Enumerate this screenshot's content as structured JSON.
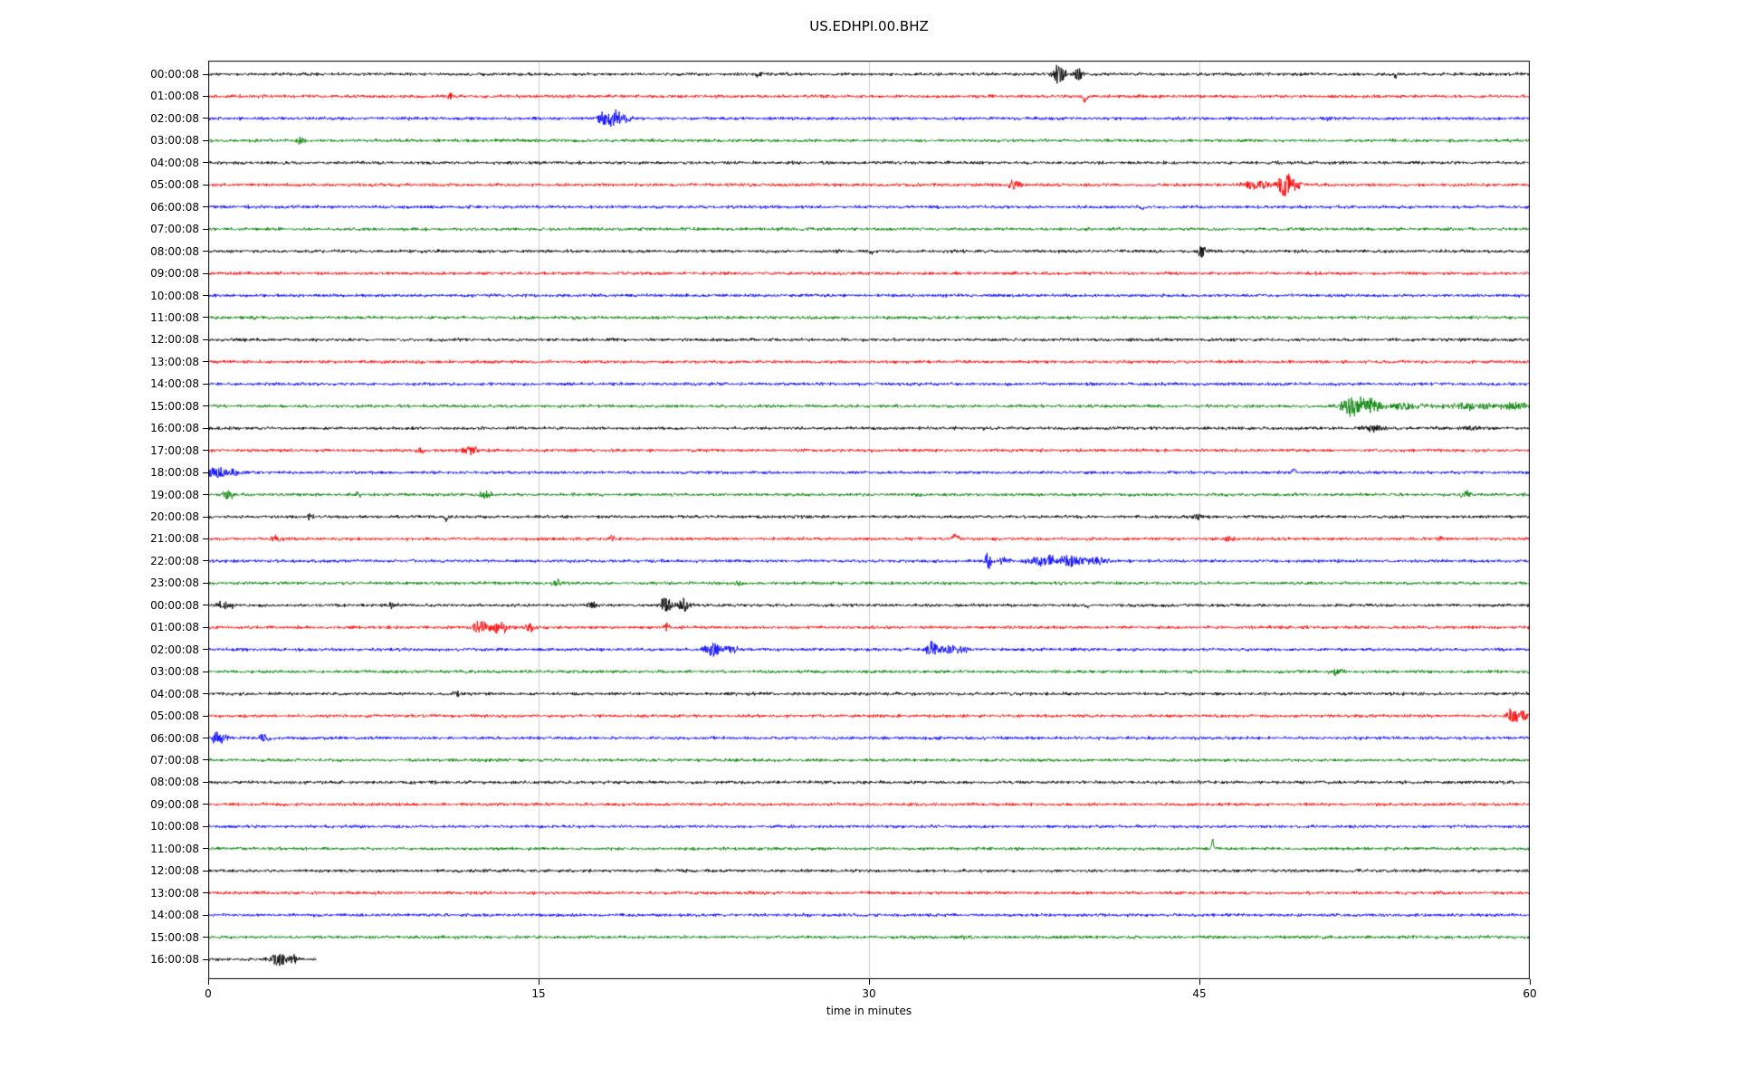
{
  "title": "US.EDHPI.00.BHZ",
  "chart_data": {
    "type": "line",
    "subtype": "helicorder-dayplot",
    "title": "US.EDHPI.00.BHZ",
    "xlabel": "time in minutes",
    "xlim": [
      0,
      60
    ],
    "x_ticks": [
      0,
      15,
      30,
      45,
      60
    ],
    "grid_x": [
      15,
      30,
      45
    ],
    "grid_color": "#cccccc",
    "frame_color": "#000000",
    "background": "#ffffff",
    "palette": {
      "black": "#000000",
      "red": "#ff0000",
      "blue": "#0000ff",
      "green": "#008000"
    },
    "minutes_per_row": 60,
    "event_format": [
      "x_minutes",
      "half_amplitude_px",
      "half_width_minutes",
      "sign"
    ],
    "rows": [
      {
        "label": "00:00:08",
        "color": "black",
        "events": [
          [
            25.0,
            3,
            0.2,
            0
          ],
          [
            26.3,
            2.5,
            0.15,
            0
          ],
          [
            38.6,
            10,
            0.35,
            0
          ],
          [
            39.5,
            9,
            0.2,
            0
          ],
          [
            53.9,
            4,
            0.08,
            -1
          ]
        ]
      },
      {
        "label": "01:00:08",
        "color": "red",
        "events": [
          [
            11.0,
            3,
            0.2,
            0
          ],
          [
            39.8,
            7,
            0.1,
            -1
          ]
        ]
      },
      {
        "label": "02:00:08",
        "color": "blue",
        "events": [
          [
            18.0,
            8,
            0.3,
            0
          ],
          [
            18.5,
            9,
            0.25,
            0
          ],
          [
            19.0,
            4,
            0.3,
            0
          ],
          [
            50.9,
            3,
            0.15,
            0
          ]
        ]
      },
      {
        "label": "03:00:08",
        "color": "green",
        "events": [
          [
            4.2,
            4,
            0.2,
            0
          ]
        ]
      },
      {
        "label": "04:00:08",
        "color": "black",
        "events": []
      },
      {
        "label": "05:00:08",
        "color": "red",
        "events": [
          [
            36.6,
            5,
            0.3,
            0
          ],
          [
            47.6,
            4,
            0.8,
            0
          ],
          [
            48.9,
            12,
            0.35,
            0
          ],
          [
            49.4,
            5,
            0.3,
            0
          ]
        ]
      },
      {
        "label": "06:00:08",
        "color": "blue",
        "events": [
          [
            42.4,
            4,
            0.1,
            -1
          ]
        ]
      },
      {
        "label": "07:00:08",
        "color": "green",
        "events": []
      },
      {
        "label": "08:00:08",
        "color": "black",
        "events": [
          [
            30.1,
            3,
            0.06,
            -1
          ],
          [
            45.1,
            8,
            0.2,
            0
          ]
        ]
      },
      {
        "label": "09:00:08",
        "color": "red",
        "events": []
      },
      {
        "label": "10:00:08",
        "color": "blue",
        "events": []
      },
      {
        "label": "11:00:08",
        "color": "green",
        "events": []
      },
      {
        "label": "12:00:08",
        "color": "black",
        "events": []
      },
      {
        "label": "13:00:08",
        "color": "red",
        "events": []
      },
      {
        "label": "14:00:08",
        "color": "blue",
        "events": []
      },
      {
        "label": "15:00:08",
        "color": "green",
        "events": [
          [
            51.9,
            11,
            0.5,
            0
          ],
          [
            52.8,
            7,
            0.6,
            0
          ],
          [
            54.2,
            4,
            1.0,
            0
          ],
          [
            57.2,
            3.5,
            1.2,
            0
          ],
          [
            59.3,
            3.5,
            0.8,
            0
          ]
        ]
      },
      {
        "label": "16:00:08",
        "color": "black",
        "events": [
          [
            52.9,
            3,
            0.6,
            0
          ],
          [
            57.4,
            2.5,
            0.5,
            0
          ]
        ]
      },
      {
        "label": "17:00:08",
        "color": "red",
        "events": [
          [
            9.6,
            3.5,
            0.25,
            0
          ],
          [
            11.9,
            5,
            0.35,
            0
          ]
        ]
      },
      {
        "label": "18:00:08",
        "color": "blue",
        "events": [
          [
            0.4,
            6,
            0.5,
            0
          ],
          [
            1.2,
            4,
            0.3,
            0
          ],
          [
            49.3,
            6,
            0.1,
            1
          ]
        ]
      },
      {
        "label": "19:00:08",
        "color": "green",
        "events": [
          [
            0.9,
            5,
            0.3,
            0
          ],
          [
            6.8,
            2.5,
            0.15,
            0
          ],
          [
            12.6,
            5,
            0.3,
            0
          ],
          [
            57.1,
            3.5,
            0.25,
            0
          ]
        ]
      },
      {
        "label": "20:00:08",
        "color": "black",
        "events": [
          [
            4.6,
            3,
            0.2,
            0
          ],
          [
            10.8,
            7,
            0.07,
            -1
          ],
          [
            44.9,
            3.5,
            0.25,
            0
          ]
        ]
      },
      {
        "label": "21:00:08",
        "color": "red",
        "events": [
          [
            3.1,
            3.5,
            0.25,
            0
          ],
          [
            18.3,
            3,
            0.2,
            0
          ],
          [
            33.9,
            6,
            0.15,
            1
          ],
          [
            46.4,
            3.5,
            0.2,
            0
          ],
          [
            55.9,
            2.5,
            0.15,
            0
          ]
        ]
      },
      {
        "label": "22:00:08",
        "color": "blue",
        "events": [
          [
            35.4,
            11,
            0.15,
            0
          ],
          [
            36.2,
            4,
            0.3,
            0
          ],
          [
            37.9,
            5,
            0.8,
            0
          ],
          [
            39.2,
            6,
            0.7,
            0
          ],
          [
            40.4,
            4,
            0.5,
            0
          ]
        ]
      },
      {
        "label": "23:00:08",
        "color": "green",
        "events": [
          [
            15.9,
            3.5,
            0.3,
            0
          ],
          [
            24.1,
            3,
            0.25,
            0
          ]
        ]
      },
      {
        "label": "00:00:08",
        "color": "black",
        "events": [
          [
            0.7,
            4,
            0.5,
            0
          ],
          [
            8.3,
            3,
            0.2,
            0
          ],
          [
            17.4,
            3,
            0.25,
            0
          ],
          [
            20.8,
            9,
            0.3,
            0
          ],
          [
            21.6,
            7,
            0.3,
            0
          ],
          [
            39.9,
            3,
            0.1,
            -1
          ]
        ]
      },
      {
        "label": "01:00:08",
        "color": "red",
        "events": [
          [
            12.4,
            8,
            0.4,
            0
          ],
          [
            13.3,
            7,
            0.4,
            0
          ],
          [
            14.6,
            5,
            0.25,
            0
          ],
          [
            20.8,
            5,
            0.15,
            0
          ]
        ]
      },
      {
        "label": "02:00:08",
        "color": "blue",
        "events": [
          [
            22.9,
            7,
            0.4,
            0
          ],
          [
            23.7,
            4,
            0.4,
            0
          ],
          [
            32.9,
            9,
            0.3,
            0
          ],
          [
            33.6,
            5,
            0.5,
            0
          ],
          [
            34.3,
            4,
            0.3,
            0
          ]
        ]
      },
      {
        "label": "03:00:08",
        "color": "green",
        "events": [
          [
            51.3,
            3.5,
            0.3,
            0
          ]
        ]
      },
      {
        "label": "04:00:08",
        "color": "black",
        "events": [
          [
            11.3,
            3.5,
            0.2,
            0
          ]
        ]
      },
      {
        "label": "05:00:08",
        "color": "red",
        "events": [
          [
            59.2,
            8,
            0.3,
            0
          ],
          [
            59.7,
            7,
            0.25,
            0
          ]
        ]
      },
      {
        "label": "06:00:08",
        "color": "blue",
        "events": [
          [
            0.5,
            8,
            0.35,
            0
          ],
          [
            2.6,
            5,
            0.25,
            0
          ]
        ]
      },
      {
        "label": "07:00:08",
        "color": "green",
        "events": []
      },
      {
        "label": "08:00:08",
        "color": "black",
        "events": []
      },
      {
        "label": "09:00:08",
        "color": "red",
        "events": []
      },
      {
        "label": "10:00:08",
        "color": "blue",
        "events": []
      },
      {
        "label": "11:00:08",
        "color": "green",
        "events": [
          [
            45.6,
            12,
            0.06,
            1
          ]
        ]
      },
      {
        "label": "12:00:08",
        "color": "black",
        "events": []
      },
      {
        "label": "13:00:08",
        "color": "red",
        "events": []
      },
      {
        "label": "14:00:08",
        "color": "blue",
        "events": []
      },
      {
        "label": "15:00:08",
        "color": "green",
        "events": [
          [
            34.3,
            3,
            0.1,
            0
          ]
        ]
      },
      {
        "label": "16:00:08",
        "color": "black",
        "xend": 4.9,
        "events": [
          [
            3.2,
            7,
            0.35,
            0
          ],
          [
            3.8,
            4,
            0.3,
            0
          ]
        ]
      }
    ]
  }
}
